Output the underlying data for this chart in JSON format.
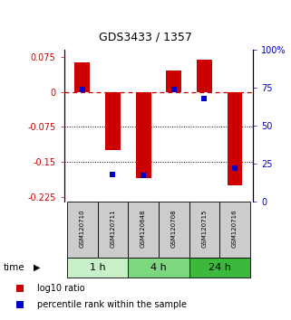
{
  "title": "GDS3433 / 1357",
  "samples": [
    "GSM120710",
    "GSM120711",
    "GSM120648",
    "GSM120708",
    "GSM120715",
    "GSM120716"
  ],
  "groups": [
    {
      "label": "1 h",
      "indices": [
        0,
        1
      ],
      "color": "#c8f0c8"
    },
    {
      "label": "4 h",
      "indices": [
        2,
        3
      ],
      "color": "#7dd87d"
    },
    {
      "label": "24 h",
      "indices": [
        4,
        5
      ],
      "color": "#3cb83c"
    }
  ],
  "log10_ratio": [
    0.062,
    -0.125,
    -0.185,
    0.045,
    0.068,
    -0.2
  ],
  "percentile_rank": [
    74,
    18,
    17,
    74,
    68,
    22
  ],
  "ylim_left": [
    -0.235,
    0.09
  ],
  "ylim_right": [
    0,
    100
  ],
  "left_ticks": [
    0.075,
    0,
    -0.075,
    -0.15,
    -0.225
  ],
  "right_ticks": [
    100,
    75,
    50,
    25,
    0
  ],
  "hline_y": 0,
  "dotted_lines": [
    -0.075,
    -0.15
  ],
  "bar_color": "#cc0000",
  "point_color": "#0000cc",
  "bar_width": 0.5,
  "bg_color": "#ffffff",
  "label_box_color": "#cccccc",
  "title_fontsize": 9,
  "tick_fontsize": 7,
  "sample_fontsize": 5,
  "group_fontsize": 8,
  "legend_fontsize": 7
}
